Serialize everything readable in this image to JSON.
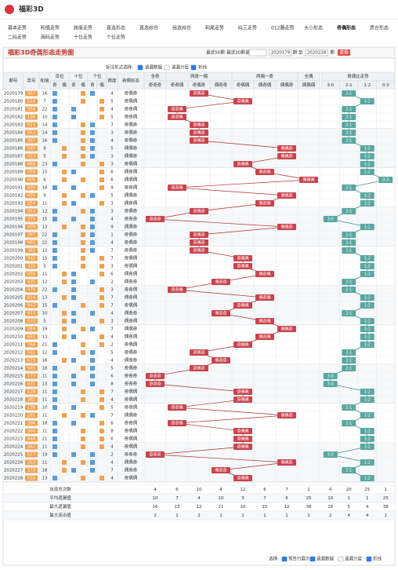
{
  "header": {
    "title": "福彩3D"
  },
  "nav": [
    "基本走势",
    "和值走势",
    "跨度走势",
    "直选形态",
    "直选综合",
    "组选综合",
    "和尾走势",
    "码三走势",
    "012路走势",
    "大小形态",
    "奇偶形态",
    "质合形态",
    "二码走势",
    "两码走势",
    "十位走势",
    "个位走势"
  ],
  "panel": {
    "title": "福彩3D奇偶形态走势图",
    "quick": [
      "最近50期",
      "最近30期",
      "最近100期"
    ],
    "from": "2020179",
    "sep": "期 至",
    "to": "2020228",
    "unit": "期",
    "button": "查看"
  },
  "options": {
    "label": "标注形式选择:",
    "items": [
      "遗漏数据",
      "遗漏分层",
      "折线"
    ]
  },
  "table": {
    "head": {
      "period": "期号",
      "draw": "奖号",
      "sum": "和值",
      "positions": [
        "百位",
        "十位",
        "个位"
      ],
      "parity": [
        "奇",
        "偶"
      ],
      "span": "跨度",
      "form": "奇偶形态",
      "groups": [
        "全奇",
        "两奇一偶",
        "两偶一奇",
        "全偶"
      ],
      "patterns": [
        "奇奇奇",
        "奇奇偶",
        "奇偶奇",
        "偶奇奇",
        "奇偶偶",
        "偶奇偶",
        "偶偶奇",
        "偶偶偶"
      ],
      "ratio_title": "奇偶比走势",
      "ratios": [
        "3:0",
        "2:1",
        "1:2",
        "0:3"
      ]
    },
    "rows": [
      [
        "2020179",
        "367",
        16,
        4,
        "奇偶奇",
        "2:1"
      ],
      [
        "2020180",
        "520",
        7,
        5,
        "奇偶偶",
        "1:2"
      ],
      [
        "2020181",
        "958",
        22,
        4,
        "奇奇偶",
        "2:1"
      ],
      [
        "2020182",
        "136",
        10,
        5,
        "奇奇偶",
        "2:1"
      ],
      [
        "2020183",
        "923",
        14,
        7,
        "奇偶奇",
        "2:1"
      ],
      [
        "2020184",
        "563",
        14,
        3,
        "奇偶奇",
        "2:1"
      ],
      [
        "2020185",
        "367",
        16,
        4,
        "奇偶奇",
        "2:1"
      ],
      [
        "2020186",
        "045",
        9,
        5,
        "偶偶奇",
        "1:2"
      ],
      [
        "2020187",
        "023",
        5,
        3,
        "偶偶奇",
        "1:2"
      ],
      [
        "2020188",
        "968",
        23,
        3,
        "奇偶偶",
        "1:2"
      ],
      [
        "2020189",
        "258",
        15,
        6,
        "偶奇偶",
        "1:2"
      ],
      [
        "2020190",
        "006",
        6,
        6,
        "偶偶偶",
        "0:3"
      ],
      [
        "2020191",
        "990",
        18,
        9,
        "奇奇偶",
        "2:1"
      ],
      [
        "2020192",
        "405",
        9,
        5,
        "偶偶奇",
        "1:2"
      ],
      [
        "2020193",
        "254",
        11,
        3,
        "偶奇偶",
        "1:2"
      ],
      [
        "2020194",
        "363",
        12,
        3,
        "奇偶奇",
        "2:1"
      ],
      [
        "2020195",
        "375",
        15,
        4,
        "奇奇奇",
        "3:0"
      ],
      [
        "2020196",
        "409",
        13,
        9,
        "偶偶奇",
        "1:2"
      ],
      [
        "2020197",
        "787",
        22,
        1,
        "奇偶奇",
        "2:1"
      ],
      [
        "2020198",
        "985",
        22,
        4,
        "奇偶奇",
        "2:1"
      ],
      [
        "2020199",
        "381",
        12,
        7,
        "奇偶奇",
        "2:1"
      ],
      [
        "2020200",
        "942",
        15,
        7,
        "奇偶偶",
        "1:2"
      ],
      [
        "2020201",
        "320",
        5,
        3,
        "奇偶偶",
        "1:2"
      ],
      [
        "2020202",
        "056",
        11,
        6,
        "偶奇偶",
        "1:2"
      ],
      [
        "2020203",
        "435",
        12,
        2,
        "偶奇奇",
        "2:1"
      ],
      [
        "2020204",
        "976",
        22,
        3,
        "奇奇偶",
        "2:1"
      ],
      [
        "2020205",
        "814",
        13,
        7,
        "偶奇偶",
        "1:2"
      ],
      [
        "2020206",
        "942",
        15,
        7,
        "奇偶偶",
        "1:2"
      ],
      [
        "2020207",
        "415",
        10,
        4,
        "偶奇奇",
        "2:1"
      ],
      [
        "2020208",
        "032",
        5,
        3,
        "偶奇偶",
        "1:2"
      ],
      [
        "2020209",
        "289",
        19,
        7,
        "偶偶奇",
        "1:2"
      ],
      [
        "2020210",
        "652",
        13,
        4,
        "偶奇偶",
        "1:2"
      ],
      [
        "2020211",
        "768",
        21,
        2,
        "奇偶偶",
        "1:2"
      ],
      [
        "2020212",
        "561",
        12,
        5,
        "奇偶奇",
        "2:1"
      ],
      [
        "2020213",
        "673",
        16,
        4,
        "偶奇奇",
        "2:1"
      ],
      [
        "2020214",
        "945",
        18,
        5,
        "奇偶奇",
        "2:1"
      ],
      [
        "2020215",
        "173",
        11,
        6,
        "奇奇奇",
        "3:0"
      ],
      [
        "2020216",
        "931",
        13,
        8,
        "奇奇奇",
        "3:0"
      ],
      [
        "2020217",
        "128",
        11,
        7,
        "奇偶偶",
        "1:2"
      ],
      [
        "2020218",
        "362",
        11,
        4,
        "奇偶偶",
        "1:2"
      ],
      [
        "2020219",
        "136",
        10,
        5,
        "奇奇偶",
        "2:1"
      ],
      [
        "2020220",
        "281",
        11,
        7,
        "偶偶奇",
        "1:2"
      ],
      [
        "2020221",
        "396",
        18,
        6,
        "奇奇偶",
        "2:1"
      ],
      [
        "2020222",
        "380",
        11,
        8,
        "奇偶偶",
        "1:2"
      ],
      [
        "2020223",
        "948",
        21,
        6,
        "奇偶偶",
        "1:2"
      ],
      [
        "2020224",
        "362",
        11,
        4,
        "奇偶偶",
        "1:2"
      ],
      [
        "2020225",
        "577",
        19,
        2,
        "奇奇奇",
        "3:0"
      ],
      [
        "2020226",
        "263",
        11,
        4,
        "偶偶奇",
        "1:2"
      ],
      [
        "2020227",
        "279",
        18,
        7,
        "偶奇奇",
        "2:1"
      ],
      [
        "2020228",
        "526",
        13,
        4,
        "奇偶偶",
        "1:2"
      ]
    ],
    "stats": [
      {
        "label": "出现总次数",
        "values": [
          4,
          6,
          10,
          4,
          12,
          6,
          7,
          1,
          4,
          20,
          25,
          1
        ]
      },
      {
        "label": "平均遗漏值",
        "values": [
          10,
          7,
          4,
          10,
          3,
          7,
          6,
          25,
          10,
          1,
          1,
          25
        ]
      },
      {
        "label": "最大遗漏值",
        "values": [
          16,
          13,
          12,
          21,
          10,
          15,
          12,
          38,
          16,
          5,
          4,
          38
        ]
      },
      {
        "label": "最大连出值",
        "values": [
          2,
          1,
          2,
          1,
          2,
          1,
          1,
          1,
          2,
          4,
          4,
          1
        ]
      }
    ]
  },
  "bottom": {
    "label": "选择:",
    "items": [
      "预告行展示",
      "遗漏数据",
      "遗漏分层",
      "折线"
    ]
  }
}
